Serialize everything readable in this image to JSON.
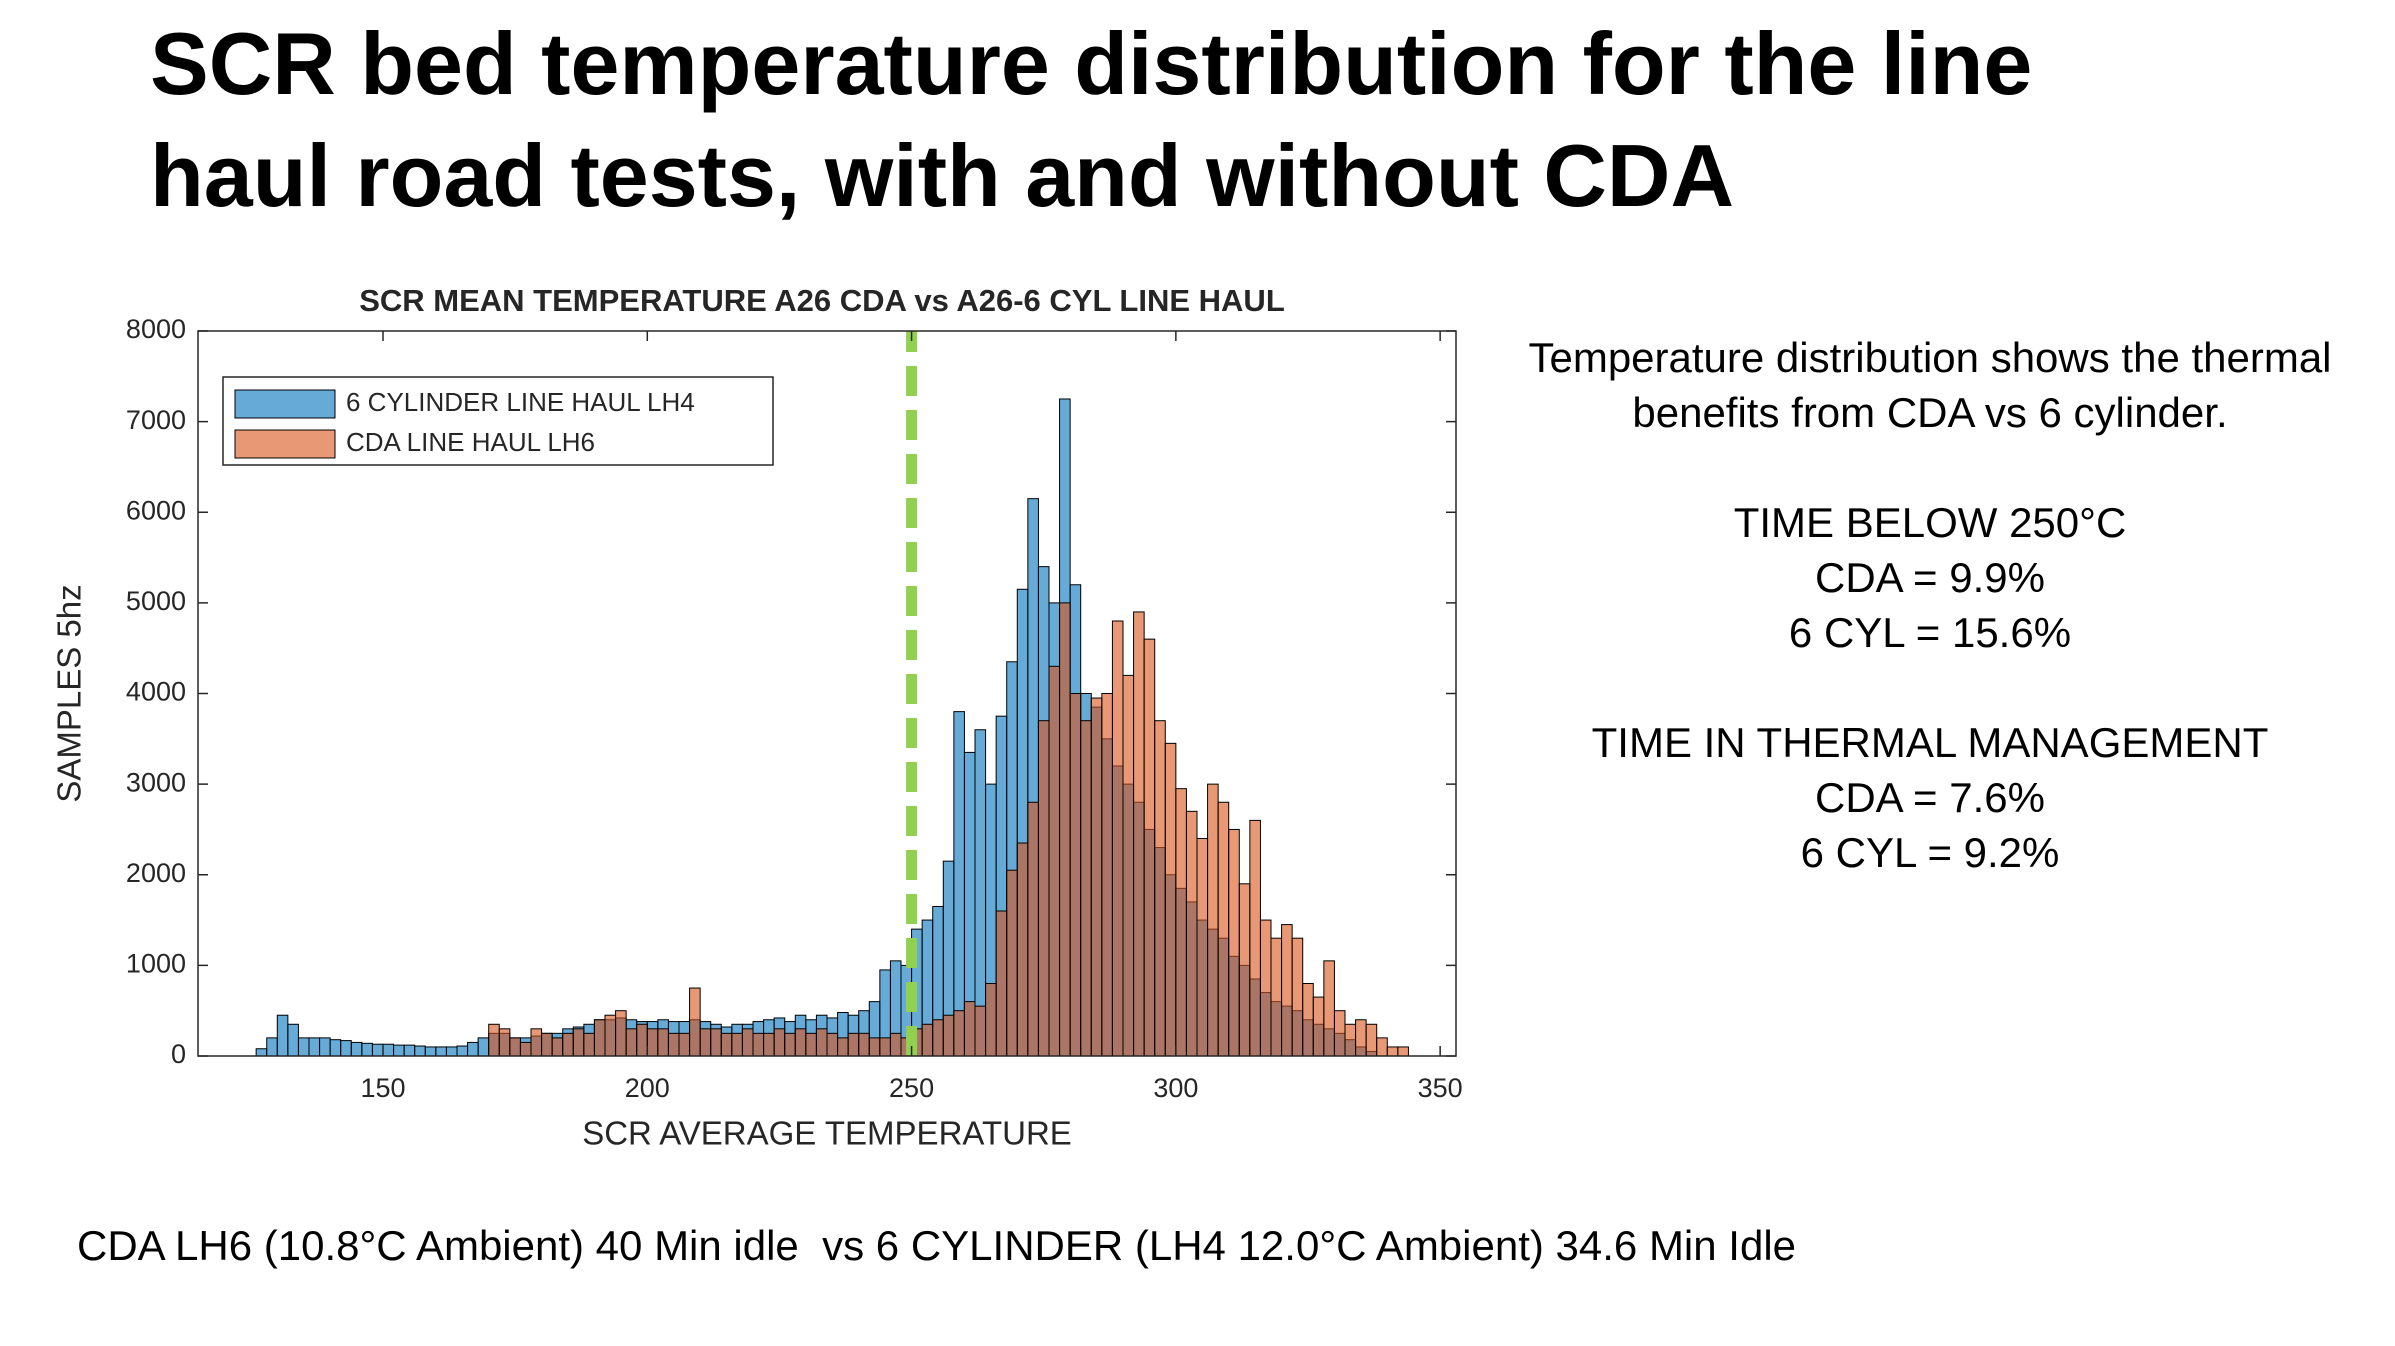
{
  "slide": {
    "title_lines": [
      "SCR bed temperature distribution for the line",
      "haul road tests, with and without CDA"
    ],
    "notes": [
      [
        "Temperature distribution shows the thermal",
        "benefits from CDA vs 6 cylinder."
      ],
      [
        "TIME BELOW 250°C",
        "CDA = 9.9%",
        "6 CYL = 15.6%"
      ],
      [
        "TIME IN THERMAL MANAGEMENT",
        "CDA = 7.6%",
        "6 CYL = 9.2%"
      ]
    ],
    "footer": "CDA LH6 (10.8°C Ambient) 40 Min idle  vs 6 CYLINDER (LH4 12.0°C Ambient) 34.6 Min Idle"
  },
  "chart_data": {
    "type": "histogram",
    "title": "SCR MEAN TEMPERATURE A26 CDA vs A26-6 CYL LINE HAUL",
    "x_label": "SCR AVERAGE TEMPERATURE",
    "y_label": "SAMPLES 5hz",
    "bins": [
      126,
      128,
      130,
      132,
      134,
      136,
      138,
      140,
      142,
      144,
      146,
      148,
      150,
      152,
      154,
      156,
      158,
      160,
      162,
      164,
      166,
      168,
      170,
      172,
      174,
      176,
      178,
      180,
      182,
      184,
      186,
      188,
      190,
      192,
      194,
      196,
      198,
      200,
      202,
      204,
      206,
      208,
      210,
      212,
      214,
      216,
      218,
      220,
      222,
      224,
      226,
      228,
      230,
      232,
      234,
      236,
      238,
      240,
      242,
      244,
      246,
      248,
      250,
      252,
      254,
      256,
      258,
      260,
      262,
      264,
      266,
      268,
      270,
      272,
      274,
      276,
      278,
      280,
      282,
      284,
      286,
      288,
      290,
      292,
      294,
      296,
      298,
      300,
      302,
      304,
      306,
      308,
      310,
      312,
      314,
      316,
      318,
      320,
      322,
      324,
      326,
      328,
      330,
      332,
      334,
      336,
      338,
      340,
      342,
      344
    ],
    "series": [
      {
        "name": "6 CYLINDER LINE HAUL LH4",
        "color": "#0072bd",
        "values": [
          80,
          200,
          450,
          350,
          200,
          200,
          200,
          180,
          170,
          150,
          140,
          130,
          130,
          120,
          120,
          110,
          100,
          100,
          100,
          110,
          150,
          200,
          250,
          250,
          200,
          200,
          220,
          250,
          250,
          300,
          320,
          350,
          400,
          400,
          420,
          400,
          380,
          380,
          400,
          380,
          380,
          400,
          380,
          350,
          320,
          350,
          350,
          380,
          400,
          420,
          380,
          450,
          400,
          450,
          420,
          480,
          450,
          500,
          600,
          950,
          1050,
          1000,
          1400,
          1500,
          1650,
          2150,
          3800,
          3350,
          3600,
          3000,
          3750,
          4350,
          5150,
          6150,
          5400,
          5000,
          7250,
          5200,
          4000,
          3850,
          3500,
          3200,
          3000,
          2800,
          2500,
          2300,
          2000,
          1850,
          1700,
          1500,
          1400,
          1300,
          1100,
          1000,
          850,
          700,
          600,
          550,
          500,
          400,
          350,
          300,
          250,
          180,
          100,
          50,
          0,
          0,
          0
        ]
      },
      {
        "name": "CDA LINE HAUL LH6",
        "color": "#d95319",
        "values": [
          0,
          0,
          0,
          0,
          0,
          0,
          0,
          0,
          0,
          0,
          0,
          0,
          0,
          0,
          0,
          0,
          0,
          0,
          0,
          0,
          0,
          0,
          350,
          300,
          200,
          150,
          300,
          250,
          200,
          250,
          300,
          250,
          400,
          450,
          500,
          300,
          350,
          300,
          300,
          250,
          250,
          750,
          300,
          300,
          250,
          250,
          300,
          250,
          250,
          300,
          250,
          300,
          250,
          300,
          250,
          200,
          250,
          250,
          200,
          200,
          250,
          200,
          300,
          350,
          400,
          450,
          500,
          600,
          550,
          800,
          1600,
          2050,
          2350,
          2800,
          3700,
          4300,
          5000,
          4000,
          3700,
          3950,
          4000,
          4800,
          4200,
          4900,
          4600,
          3700,
          3450,
          2950,
          2700,
          2400,
          3000,
          2800,
          2500,
          1900,
          2600,
          1500,
          1300,
          1450,
          1300,
          800,
          650,
          1050,
          500,
          350,
          400,
          350,
          200,
          100,
          100
        ]
      }
    ],
    "bar_opacity": 0.6,
    "xlim": [
      115,
      353
    ],
    "ylim": [
      0,
      8000
    ],
    "xticks": [
      150,
      200,
      250,
      300,
      350
    ],
    "yticks": [
      0,
      1000,
      2000,
      3000,
      4000,
      5000,
      6000,
      7000,
      8000
    ],
    "legend": "upper-left",
    "threshold": {
      "x": 250,
      "color": "#92d050"
    }
  }
}
